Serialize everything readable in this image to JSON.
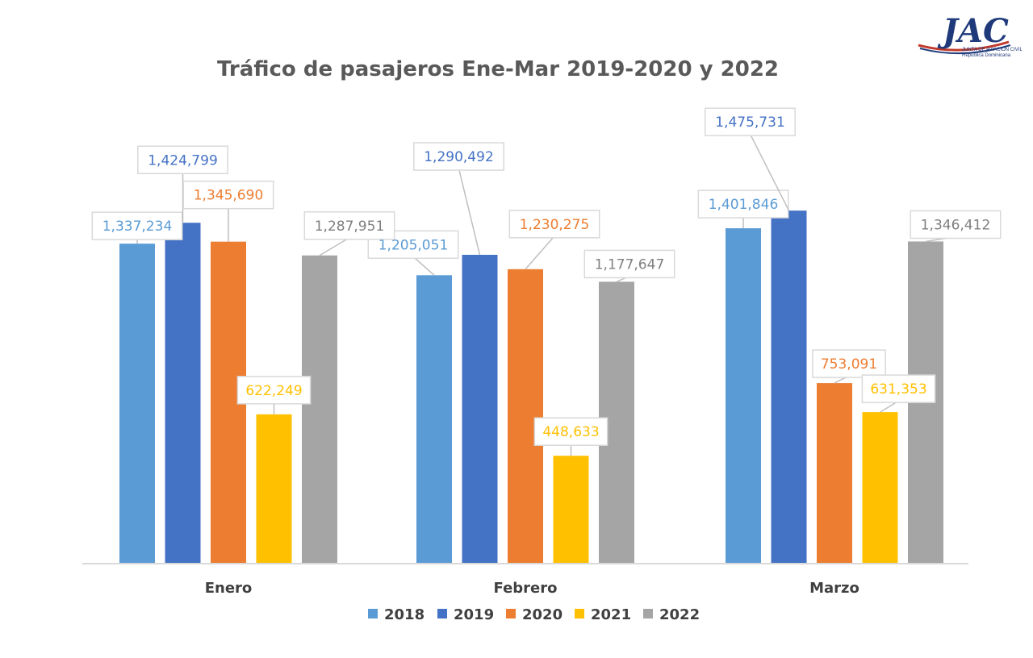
{
  "logo": {
    "text": "JAC",
    "line1": "JUNTA DE AVIACIÓN CIVIL",
    "line2": "República Dominicana"
  },
  "chart_data": {
    "type": "bar",
    "title": "Tráfico de pasajeros Ene-Mar 2019-2020 y 2022",
    "xlabel": "",
    "ylabel": "",
    "ylim": [
      0,
      1600000
    ],
    "grid": false,
    "legend_position": "bottom",
    "categories": [
      "Enero",
      "Febrero",
      "Marzo"
    ],
    "series": [
      {
        "name": "2018",
        "color": "#5B9BD5",
        "values": [
          1337234,
          1205051,
          1401846
        ],
        "labels": [
          "1,337,234",
          "1,205,051",
          "1,401,846"
        ]
      },
      {
        "name": "2019",
        "color": "#4472C4",
        "values": [
          1424799,
          1290492,
          1475731
        ],
        "labels": [
          "1,424,799",
          "1,290,492",
          "1,475,731"
        ]
      },
      {
        "name": "2020",
        "color": "#ED7D31",
        "values": [
          1345690,
          1230275,
          753091
        ],
        "labels": [
          "1,345,690",
          "1,230,275",
          "753,091"
        ]
      },
      {
        "name": "2021",
        "color": "#FFC000",
        "values": [
          622249,
          448633,
          631353
        ],
        "labels": [
          "622,249",
          "448,633",
          "631,353"
        ]
      },
      {
        "name": "2022",
        "color": "#A5A5A5",
        "values": [
          1287951,
          1177647,
          1346412
        ],
        "labels": [
          "1,287,951",
          "1,177,647",
          "1,346,412"
        ]
      }
    ]
  }
}
